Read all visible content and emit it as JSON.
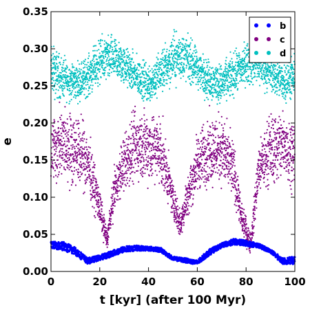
{
  "chart_data": {
    "type": "scatter",
    "title": "",
    "xlabel": "t [kyr] (after 100 Myr)",
    "ylabel": "e",
    "xlim": [
      0,
      100
    ],
    "ylim": [
      0,
      0.35
    ],
    "xticks": [
      "0",
      "20",
      "40",
      "60",
      "80",
      "100"
    ],
    "yticks": [
      "0.00",
      "0.05",
      "0.10",
      "0.15",
      "0.20",
      "0.25",
      "0.30",
      "0.35"
    ],
    "grid": false,
    "legend_position": "top-right",
    "series": [
      {
        "name": "b",
        "color": "#0000ff",
        "style": "dense-thin-band",
        "trend": {
          "x": [
            0,
            5,
            10,
            15,
            20,
            25,
            30,
            35,
            40,
            45,
            50,
            55,
            60,
            65,
            70,
            75,
            80,
            85,
            90,
            95,
            100
          ],
          "low": [
            0.032,
            0.028,
            0.022,
            0.01,
            0.015,
            0.02,
            0.026,
            0.028,
            0.028,
            0.026,
            0.015,
            0.012,
            0.009,
            0.022,
            0.032,
            0.036,
            0.034,
            0.032,
            0.025,
            0.01,
            0.01
          ],
          "high": [
            0.04,
            0.04,
            0.033,
            0.018,
            0.022,
            0.028,
            0.034,
            0.035,
            0.034,
            0.032,
            0.02,
            0.018,
            0.015,
            0.03,
            0.038,
            0.044,
            0.042,
            0.038,
            0.03,
            0.018,
            0.02
          ]
        }
      },
      {
        "name": "c",
        "color": "#800080",
        "style": "scatter-envelope",
        "trend": {
          "x": [
            0,
            5,
            10,
            15,
            20,
            23,
            26,
            30,
            35,
            40,
            45,
            50,
            53,
            56,
            60,
            65,
            70,
            75,
            78,
            82,
            85,
            90,
            95,
            100
          ],
          "low": [
            0.1,
            0.1,
            0.1,
            0.09,
            0.05,
            0.025,
            0.07,
            0.09,
            0.1,
            0.1,
            0.095,
            0.065,
            0.035,
            0.065,
            0.09,
            0.1,
            0.1,
            0.08,
            0.045,
            0.015,
            0.09,
            0.1,
            0.1,
            0.1
          ],
          "high": [
            0.23,
            0.24,
            0.23,
            0.21,
            0.12,
            0.06,
            0.15,
            0.2,
            0.24,
            0.24,
            0.23,
            0.13,
            0.09,
            0.14,
            0.2,
            0.23,
            0.23,
            0.19,
            0.1,
            0.06,
            0.18,
            0.23,
            0.24,
            0.22
          ]
        }
      },
      {
        "name": "d",
        "color": "#00bfbf",
        "style": "scatter-envelope",
        "trend": {
          "x": [
            0,
            5,
            10,
            15,
            20,
            25,
            30,
            35,
            40,
            45,
            50,
            55,
            60,
            65,
            70,
            75,
            80,
            85,
            90,
            95,
            100
          ],
          "low": [
            0.22,
            0.22,
            0.22,
            0.225,
            0.24,
            0.245,
            0.24,
            0.225,
            0.215,
            0.225,
            0.24,
            0.245,
            0.235,
            0.22,
            0.215,
            0.225,
            0.24,
            0.24,
            0.23,
            0.22,
            0.22
          ],
          "high": [
            0.32,
            0.3,
            0.29,
            0.3,
            0.325,
            0.33,
            0.315,
            0.3,
            0.29,
            0.31,
            0.335,
            0.335,
            0.31,
            0.295,
            0.29,
            0.305,
            0.32,
            0.32,
            0.305,
            0.29,
            0.3
          ]
        }
      }
    ]
  }
}
